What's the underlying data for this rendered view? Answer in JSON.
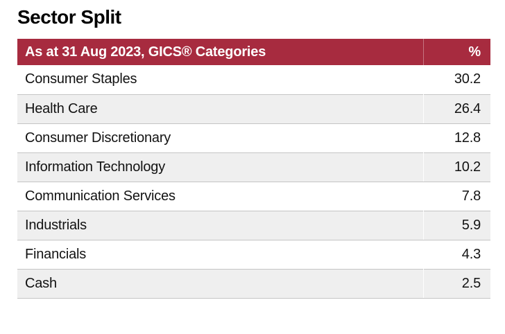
{
  "page_title": "Sector Split",
  "table": {
    "header": {
      "category_label": "As at 31 Aug 2023, GICS® Categories",
      "value_label": "%"
    },
    "rows": [
      {
        "label": "Consumer Staples",
        "value": "30.2"
      },
      {
        "label": "Health Care",
        "value": "26.4"
      },
      {
        "label": "Consumer Discretionary",
        "value": "12.8"
      },
      {
        "label": "Information Technology",
        "value": "10.2"
      },
      {
        "label": "Communication Services",
        "value": "7.8"
      },
      {
        "label": "Industrials",
        "value": "5.9"
      },
      {
        "label": "Financials",
        "value": "4.3"
      },
      {
        "label": "Cash",
        "value": "2.5"
      }
    ]
  },
  "colors": {
    "header_bg": "#A72B3F",
    "header_text": "#FFFFFF",
    "row_alt_bg": "#EFEFEF",
    "row_border": "#C4C4C4",
    "text": "#121212"
  },
  "chart_data": {
    "type": "table",
    "title": "Sector Split",
    "columns": [
      "As at 31 Aug 2023, GICS® Categories",
      "%"
    ],
    "categories": [
      "Consumer Staples",
      "Health Care",
      "Consumer Discretionary",
      "Information Technology",
      "Communication Services",
      "Industrials",
      "Financials",
      "Cash"
    ],
    "values": [
      30.2,
      26.4,
      12.8,
      10.2,
      7.8,
      5.9,
      4.3,
      2.5
    ]
  }
}
